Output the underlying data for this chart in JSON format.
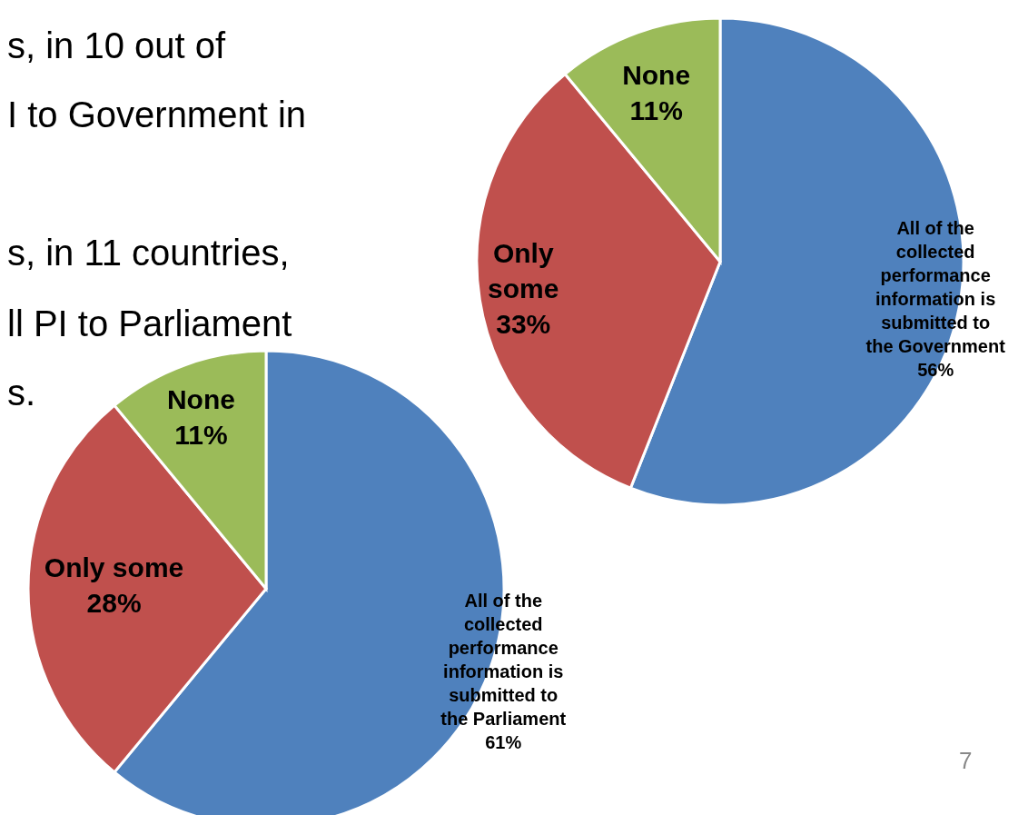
{
  "chart_data": [
    {
      "type": "pie",
      "categories": [
        "All of the collected performance information is submitted to the Government",
        "Only some",
        "None"
      ],
      "values": [
        56,
        33,
        11
      ],
      "value_labels": [
        "56%",
        "33%",
        "11%"
      ],
      "colors": [
        "#4f81bd",
        "#c0504d",
        "#9bbb59"
      ],
      "legend": false,
      "annotations": [
        "s, in 10 out of",
        "I to Government in",
        "7"
      ]
    },
    {
      "type": "pie",
      "categories": [
        "All of the collected performance information is submitted to the Parliament",
        "Only some",
        "None"
      ],
      "values": [
        61,
        28,
        11
      ],
      "value_labels": [
        "61%",
        "28%",
        "11%"
      ],
      "colors": [
        "#4f81bd",
        "#c0504d",
        "#9bbb59"
      ],
      "legend": false,
      "annotations": [
        "s, in 11 countries,",
        "ll PI to Parliament",
        "s."
      ]
    }
  ]
}
